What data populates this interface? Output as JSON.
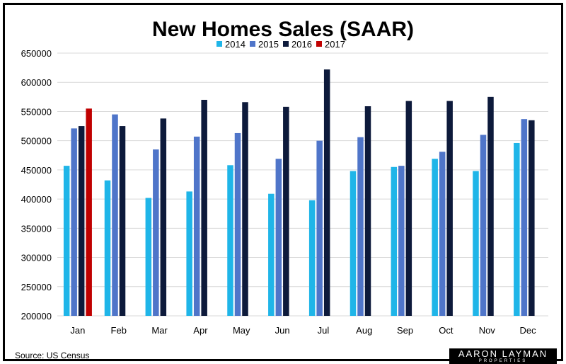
{
  "chart_data": {
    "type": "bar",
    "title": "New Homes Sales (SAAR)",
    "categories": [
      "Jan",
      "Feb",
      "Mar",
      "Apr",
      "May",
      "Jun",
      "Jul",
      "Aug",
      "Sep",
      "Oct",
      "Nov",
      "Dec"
    ],
    "series": [
      {
        "name": "2014",
        "color": "#1fb5e8",
        "values": [
          457000,
          432000,
          402000,
          413000,
          458000,
          409000,
          398000,
          448000,
          455000,
          469000,
          448000,
          496000
        ]
      },
      {
        "name": "2015",
        "color": "#4f75c9",
        "values": [
          521000,
          545000,
          485000,
          507000,
          513000,
          469000,
          500000,
          506000,
          457000,
          481000,
          510000,
          537000
        ]
      },
      {
        "name": "2016",
        "color": "#0d1a3b",
        "values": [
          525000,
          525000,
          538000,
          570000,
          566000,
          558000,
          622000,
          559000,
          568000,
          568000,
          575000,
          535000
        ]
      },
      {
        "name": "2017",
        "color": "#c00000",
        "values": [
          555000,
          null,
          null,
          null,
          null,
          null,
          null,
          null,
          null,
          null,
          null,
          null
        ]
      }
    ],
    "ylim": [
      200000,
      650000
    ],
    "yticks": [
      200000,
      250000,
      300000,
      350000,
      400000,
      450000,
      500000,
      550000,
      600000,
      650000
    ],
    "grid": true,
    "legend_position": "top-center",
    "xlabel": "",
    "ylabel": ""
  },
  "source_note": "Source: US Census",
  "logo": {
    "main": "AARON LAYMAN",
    "sub": "PROPERTIES"
  }
}
